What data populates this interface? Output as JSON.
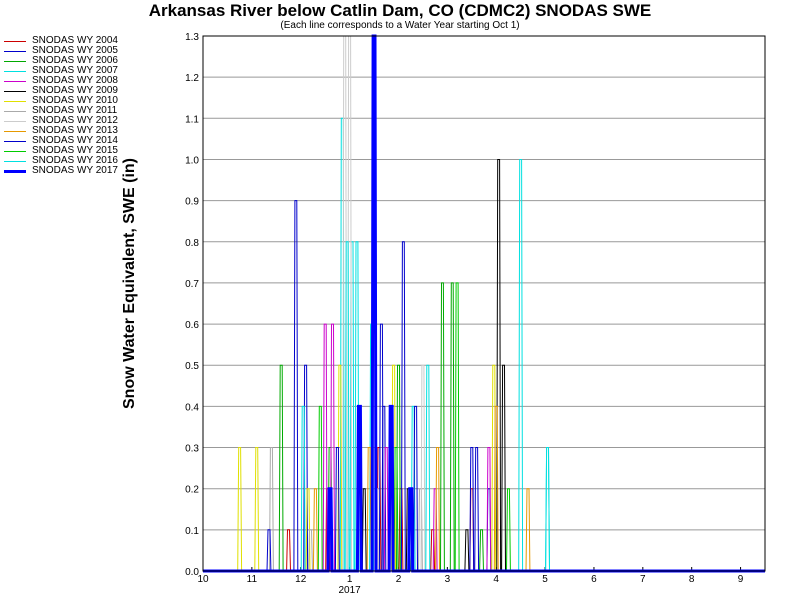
{
  "chart_data": {
    "type": "line",
    "title": "Arkansas River below Catlin Dam, CO (CDMC2) SNODAS SWE",
    "subtitle": "(Each line corresponds to a Water Year starting Oct 1)",
    "ylabel": "Snow Water Equivalent, SWE (in)",
    "xlabel": "",
    "ylim": [
      0,
      1.3
    ],
    "yticks": [
      "0.0",
      "0.1",
      "0.2",
      "0.3",
      "0.4",
      "0.5",
      "0.6",
      "0.7",
      "0.8",
      "0.9",
      "1.0",
      "1.1",
      "1.2",
      "1.3"
    ],
    "xlim": [
      10,
      21.0
    ],
    "xticks": [
      {
        "v": 10,
        "label": "10"
      },
      {
        "v": 11,
        "label": "11"
      },
      {
        "v": 12,
        "label": "12"
      },
      {
        "v": 13,
        "label": "1"
      },
      {
        "v": 14,
        "label": "2"
      },
      {
        "v": 15,
        "label": "3"
      },
      {
        "v": 16,
        "label": "4"
      },
      {
        "v": 17,
        "label": "5"
      },
      {
        "v": 18,
        "label": "6"
      },
      {
        "v": 19,
        "label": "7"
      },
      {
        "v": 20,
        "label": "8"
      },
      {
        "v": 21,
        "label": "9"
      }
    ],
    "year_label": "2017",
    "grid": true,
    "legend_position": "left",
    "series": [
      {
        "name": "SNODAS WY 2004",
        "color": "#cc0000",
        "width": 1,
        "peaks": [
          [
            11.75,
            0.1
          ],
          [
            12.55,
            0.2
          ],
          [
            13.6,
            0.3
          ],
          [
            14.05,
            0.2
          ],
          [
            14.7,
            0.1
          ],
          [
            15.5,
            0.2
          ]
        ]
      },
      {
        "name": "SNODAS WY 2005",
        "color": "#0000cc",
        "width": 1,
        "peaks": [
          [
            11.9,
            0.9
          ],
          [
            12.1,
            0.5
          ],
          [
            13.7,
            0.4
          ],
          [
            14.1,
            0.8
          ],
          [
            15.5,
            0.3
          ],
          [
            15.85,
            0.2
          ]
        ]
      },
      {
        "name": "SNODAS WY 2006",
        "color": "#00aa00",
        "width": 1,
        "peaks": [
          [
            11.6,
            0.5
          ],
          [
            12.6,
            0.3
          ],
          [
            14.0,
            0.5
          ],
          [
            14.9,
            0.7
          ],
          [
            15.1,
            0.7
          ],
          [
            15.7,
            0.1
          ]
        ]
      },
      {
        "name": "SNODAS WY 2007",
        "color": "#00e0e0",
        "width": 1,
        "peaks": [
          [
            12.85,
            1.1
          ],
          [
            13.05,
            0.8
          ],
          [
            13.45,
            0.6
          ],
          [
            14.3,
            0.4
          ],
          [
            16.5,
            1.0
          ],
          [
            17.05,
            0.3
          ]
        ]
      },
      {
        "name": "SNODAS WY 2008",
        "color": "#cc00cc",
        "width": 1,
        "peaks": [
          [
            12.5,
            0.6
          ],
          [
            12.65,
            0.6
          ],
          [
            13.75,
            0.3
          ],
          [
            14.75,
            0.2
          ],
          [
            15.85,
            0.3
          ]
        ]
      },
      {
        "name": "SNODAS WY 2009",
        "color": "#000000",
        "width": 1,
        "peaks": [
          [
            13.3,
            0.2
          ],
          [
            14.2,
            0.2
          ],
          [
            15.4,
            0.1
          ],
          [
            16.05,
            1.0
          ],
          [
            16.15,
            0.5
          ]
        ]
      },
      {
        "name": "SNODAS WY 2010",
        "color": "#e0e000",
        "width": 1,
        "peaks": [
          [
            10.75,
            0.3
          ],
          [
            11.1,
            0.3
          ],
          [
            12.15,
            0.2
          ],
          [
            12.8,
            0.5
          ],
          [
            13.9,
            0.5
          ],
          [
            15.95,
            0.5
          ]
        ]
      },
      {
        "name": "SNODAS WY 2011",
        "color": "#aaaaaa",
        "width": 1,
        "peaks": [
          [
            11.4,
            0.3
          ],
          [
            12.2,
            0.1
          ],
          [
            13.2,
            0.3
          ],
          [
            14.45,
            0.2
          ]
        ]
      },
      {
        "name": "SNODAS WY 2012",
        "color": "#cccccc",
        "width": 1,
        "peaks": [
          [
            12.9,
            1.3
          ],
          [
            13.0,
            1.3
          ],
          [
            13.55,
            0.2
          ],
          [
            14.5,
            0.5
          ]
        ]
      },
      {
        "name": "SNODAS WY 2013",
        "color": "#e69900",
        "width": 1,
        "peaks": [
          [
            12.3,
            0.2
          ],
          [
            13.4,
            0.3
          ],
          [
            14.8,
            0.3
          ],
          [
            16.0,
            0.4
          ],
          [
            16.65,
            0.2
          ]
        ]
      },
      {
        "name": "SNODAS WY 2014",
        "color": "#0000cc",
        "width": 1,
        "peaks": [
          [
            11.35,
            0.1
          ],
          [
            12.75,
            0.3
          ],
          [
            13.65,
            0.6
          ],
          [
            14.35,
            0.4
          ],
          [
            15.6,
            0.3
          ]
        ]
      },
      {
        "name": "SNODAS WY 2015",
        "color": "#00cc00",
        "width": 1,
        "peaks": [
          [
            12.4,
            0.4
          ],
          [
            13.95,
            0.3
          ],
          [
            15.2,
            0.7
          ],
          [
            16.25,
            0.2
          ]
        ]
      },
      {
        "name": "SNODAS WY 2016",
        "color": "#00e0e0",
        "width": 1,
        "peaks": [
          [
            12.05,
            0.4
          ],
          [
            12.95,
            0.8
          ],
          [
            13.15,
            0.8
          ],
          [
            14.6,
            0.5
          ],
          [
            17.05,
            0.3
          ]
        ]
      },
      {
        "name": "SNODAS WY 2017",
        "color": "#0000ff",
        "width": 3,
        "peaks": [
          [
            12.6,
            0.2
          ],
          [
            13.2,
            0.4
          ],
          [
            13.5,
            1.3
          ],
          [
            13.85,
            0.4
          ],
          [
            14.25,
            0.2
          ]
        ]
      }
    ]
  }
}
